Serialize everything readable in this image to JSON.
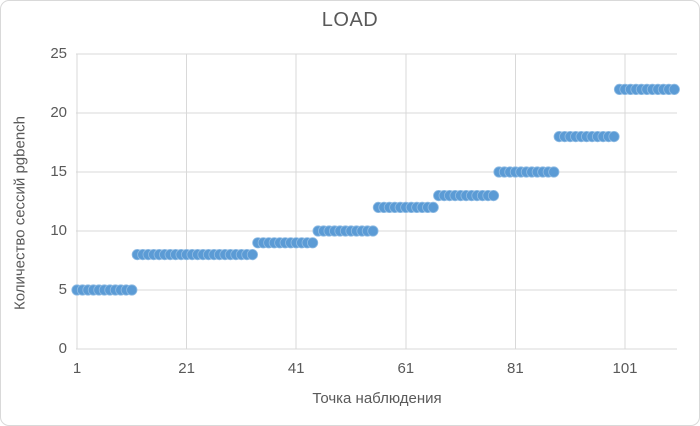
{
  "chart_data": {
    "type": "scatter",
    "title": "LOAD",
    "xlabel": "Точка наблюдения",
    "ylabel": "Количество сессий pgbench",
    "x_ticks": [
      1,
      21,
      41,
      61,
      81,
      101
    ],
    "y_ticks": [
      0,
      5,
      10,
      15,
      20,
      25
    ],
    "xlim": [
      1,
      111
    ],
    "ylim": [
      0,
      25
    ],
    "grid": true,
    "legend": "none",
    "series": [
      {
        "name": "LOAD",
        "marker": "circle",
        "marker_color": "#5B9BD5",
        "segments": [
          {
            "x_from": 1,
            "x_to": 11,
            "y": 5
          },
          {
            "x_from": 12,
            "x_to": 33,
            "y": 8
          },
          {
            "x_from": 34,
            "x_to": 44,
            "y": 9
          },
          {
            "x_from": 45,
            "x_to": 55,
            "y": 10
          },
          {
            "x_from": 56,
            "x_to": 66,
            "y": 12
          },
          {
            "x_from": 67,
            "x_to": 77,
            "y": 13
          },
          {
            "x_from": 78,
            "x_to": 88,
            "y": 15
          },
          {
            "x_from": 89,
            "x_to": 99,
            "y": 18
          },
          {
            "x_from": 100,
            "x_to": 110,
            "y": 22
          }
        ]
      }
    ]
  },
  "colors": {
    "marker": "#5B9BD5",
    "marker_edge": "#8FBBE3",
    "gridline": "#D9D9D9",
    "axis_line": "#D9D9D9",
    "text": "#595959",
    "chart_border": "#D9D9D9",
    "background": "#FFFFFF"
  }
}
